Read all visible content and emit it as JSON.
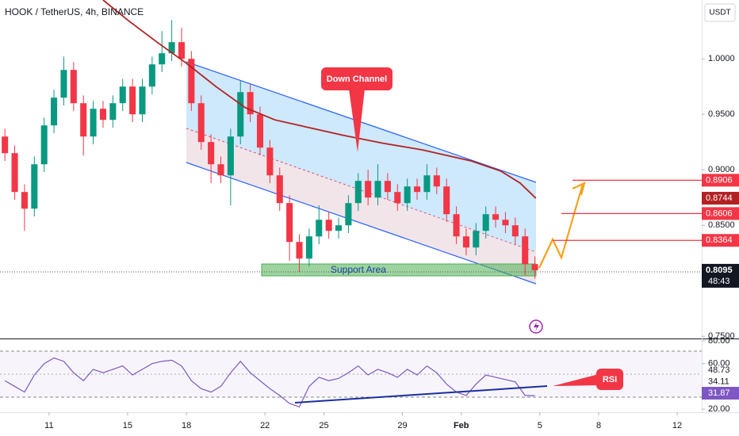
{
  "chart_data": {
    "type": "candlestick",
    "title": "HOOK / TetherUS, 4h, BINANCE",
    "quote": "USDT",
    "up_color": "#089981",
    "down_color": "#f23645",
    "x": [
      8.75,
      9.25,
      9.75,
      10.25,
      10.75,
      11.25,
      11.75,
      12.25,
      12.75,
      13.25,
      13.75,
      14.25,
      14.75,
      15.25,
      15.75,
      16.25,
      16.75,
      17.25,
      17.75,
      18.25,
      18.75,
      19.25,
      19.75,
      20.25,
      20.75,
      21.25,
      21.75,
      22.25,
      22.75,
      23.25,
      23.75,
      24.25,
      24.75,
      25.25,
      25.75,
      26.25,
      26.75,
      27.25,
      27.75,
      28.25,
      28.75,
      29.25,
      29.75,
      30.25,
      30.75,
      31.25,
      31.75,
      32.25,
      32.75,
      33.25,
      33.75,
      34.25,
      34.75,
      35.25,
      35.75
    ],
    "open": [
      0.93,
      0.915,
      0.88,
      0.865,
      0.905,
      0.94,
      0.965,
      0.99,
      0.96,
      0.93,
      0.955,
      0.945,
      0.96,
      0.975,
      0.95,
      0.975,
      0.995,
      1.005,
      1.015,
      1.0,
      0.96,
      0.925,
      0.905,
      0.895,
      0.93,
      0.97,
      0.95,
      0.92,
      0.895,
      0.87,
      0.835,
      0.82,
      0.84,
      0.855,
      0.845,
      0.85,
      0.87,
      0.89,
      0.875,
      0.89,
      0.88,
      0.87,
      0.885,
      0.88,
      0.895,
      0.885,
      0.86,
      0.84,
      0.83,
      0.845,
      0.86,
      0.855,
      0.85,
      0.84,
      0.815
    ],
    "high": [
      0.937,
      0.922,
      0.887,
      0.912,
      0.947,
      0.972,
      1.002,
      0.997,
      0.967,
      0.962,
      0.962,
      0.967,
      0.982,
      0.982,
      0.982,
      1.002,
      1.025,
      1.035,
      1.028,
      1.007,
      0.967,
      0.932,
      0.912,
      0.937,
      0.98,
      0.977,
      0.957,
      0.927,
      0.902,
      0.877,
      0.842,
      0.847,
      0.868,
      0.862,
      0.857,
      0.877,
      0.897,
      0.9,
      0.905,
      0.897,
      0.887,
      0.892,
      0.892,
      0.905,
      0.902,
      0.892,
      0.867,
      0.847,
      0.852,
      0.867,
      0.867,
      0.862,
      0.857,
      0.847,
      0.822
    ],
    "low": [
      0.908,
      0.873,
      0.845,
      0.858,
      0.898,
      0.933,
      0.958,
      0.953,
      0.913,
      0.923,
      0.938,
      0.938,
      0.953,
      0.943,
      0.943,
      0.968,
      0.988,
      0.998,
      0.993,
      0.953,
      0.918,
      0.888,
      0.888,
      0.868,
      0.923,
      0.943,
      0.913,
      0.888,
      0.863,
      0.818,
      0.808,
      0.813,
      0.833,
      0.838,
      0.838,
      0.843,
      0.863,
      0.868,
      0.868,
      0.873,
      0.863,
      0.863,
      0.873,
      0.873,
      0.878,
      0.853,
      0.833,
      0.823,
      0.823,
      0.838,
      0.848,
      0.843,
      0.833,
      0.805,
      0.802
    ],
    "close": [
      0.915,
      0.88,
      0.865,
      0.905,
      0.94,
      0.965,
      0.99,
      0.96,
      0.93,
      0.955,
      0.945,
      0.96,
      0.975,
      0.95,
      0.975,
      0.995,
      1.005,
      1.015,
      1.0,
      0.96,
      0.925,
      0.905,
      0.895,
      0.93,
      0.97,
      0.95,
      0.92,
      0.895,
      0.87,
      0.835,
      0.82,
      0.84,
      0.855,
      0.845,
      0.85,
      0.87,
      0.89,
      0.875,
      0.89,
      0.88,
      0.87,
      0.885,
      0.88,
      0.895,
      0.885,
      0.86,
      0.84,
      0.83,
      0.845,
      0.86,
      0.855,
      0.85,
      0.84,
      0.815,
      0.8095
    ],
    "ma": {
      "color": "#b22222",
      "x": [
        13.75,
        15,
        16.5,
        18,
        19.5,
        21,
        22.5,
        24,
        26,
        28,
        30,
        31,
        32.5,
        34,
        35,
        35.8
      ],
      "values": [
        1.053,
        1.035,
        1.015,
        0.996,
        0.975,
        0.956,
        0.945,
        0.939,
        0.931,
        0.924,
        0.918,
        0.914,
        0.908,
        0.899,
        0.888,
        0.8744
      ]
    },
    "levels": [
      0.8906,
      0.8606,
      0.8364
    ],
    "countdown": "48:43",
    "xlim": [
      8.5,
      44.25
    ],
    "xticks": [
      11,
      15,
      18,
      22,
      25,
      29,
      {
        "value": 32,
        "label": "Feb"
      },
      {
        "value": 36,
        "label": "5"
      },
      {
        "value": 39,
        "label": "8"
      },
      {
        "value": 43,
        "label": "12"
      }
    ],
    "ylim": [
      0.748,
      1.053
    ],
    "yticks": [
      {
        "value": 1.0,
        "label": "1.0000"
      },
      {
        "value": 0.95,
        "label": "0.9500"
      },
      {
        "value": 0.9,
        "label": "0.9000"
      },
      {
        "value": 0.85,
        "label": "0.8500"
      },
      {
        "value": 0.75,
        "label": "0.7500"
      }
    ],
    "annotations": [
      "Down Channel",
      "Support Area",
      "RSI"
    ],
    "rsi": {
      "color": "#7e57c2",
      "values": [
        45,
        40,
        35,
        50,
        60,
        65,
        62,
        52,
        45,
        55,
        52,
        55,
        58,
        50,
        55,
        60,
        62,
        63,
        58,
        45,
        38,
        35,
        40,
        52,
        62,
        52,
        45,
        38,
        32,
        25,
        22,
        40,
        48,
        45,
        47,
        52,
        58,
        50,
        55,
        52,
        48,
        55,
        50,
        58,
        52,
        42,
        35,
        32,
        42,
        50,
        48,
        46,
        44,
        32,
        31.87
      ],
      "readouts": [
        48.73,
        34.11
      ],
      "ylim": [
        17.3,
        81.4
      ],
      "yticks": [
        {
          "value": 80,
          "label": "80.00"
        },
        {
          "value": 60,
          "label": "60.00"
        },
        {
          "value": 20,
          "label": "20.00"
        }
      ]
    }
  }
}
